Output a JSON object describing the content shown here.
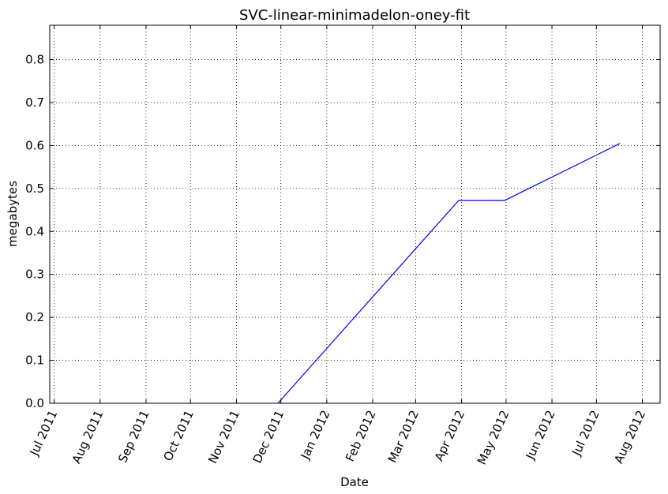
{
  "chart_data": {
    "type": "line",
    "title": "SVC-linear-minimadelon-oney-fit",
    "xlabel": "Date",
    "ylabel": "megabytes",
    "x_ticks": [
      "Jul 2011",
      "Aug 2011",
      "Sep 2011",
      "Oct 2011",
      "Nov 2011",
      "Dec 2011",
      "Jan 2012",
      "Feb 2012",
      "Mar 2012",
      "Apr 2012",
      "May 2012",
      "Jun 2012",
      "Jul 2012",
      "Aug 2012"
    ],
    "y_ticks": [
      "0.0",
      "0.1",
      "0.2",
      "0.3",
      "0.4",
      "0.5",
      "0.6",
      "0.7",
      "0.8"
    ],
    "xlim": [
      "2011-06-28",
      "2012-08-13"
    ],
    "ylim": [
      0,
      0.88
    ],
    "grid": true,
    "series": [
      {
        "color": "#0000ff",
        "x": [
          "2011-11-29",
          "2012-03-30",
          "2012-04-30",
          "2012-07-17"
        ],
        "y": [
          0.0,
          0.472,
          0.472,
          0.605
        ]
      }
    ]
  }
}
